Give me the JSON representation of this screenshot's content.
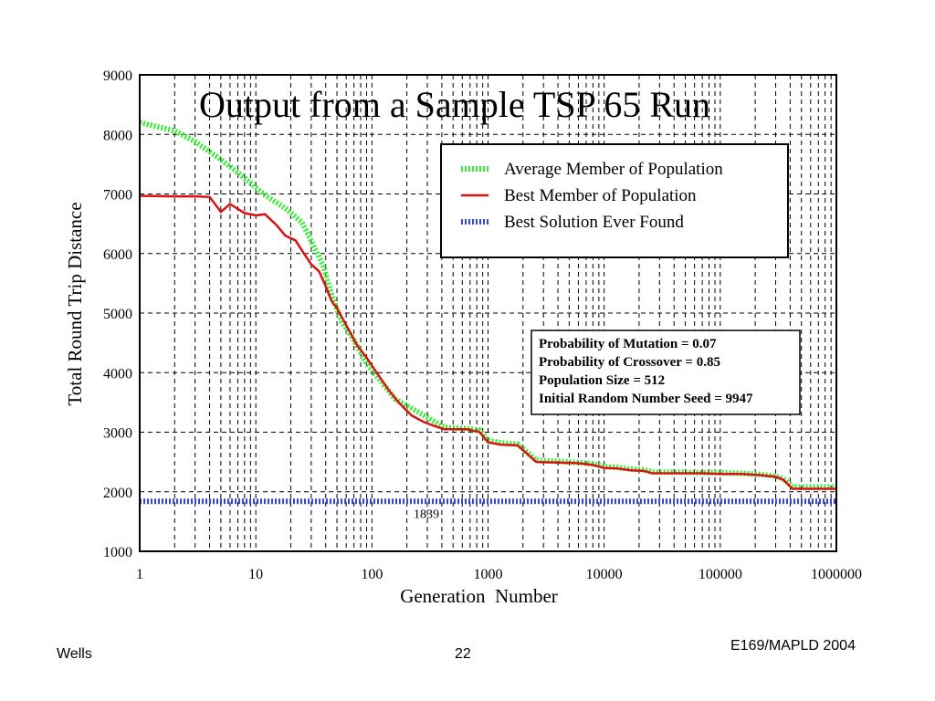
{
  "footer": {
    "author": "Wells",
    "page_number": "22",
    "course": "E169/MAPLD 2004"
  },
  "chart_data": {
    "type": "line",
    "title": "Output from a Sample TSP 65 Run",
    "xlabel": "Generation  Number",
    "ylabel": "Total Round Trip Distance",
    "x_scale": "log",
    "xlim": [
      1,
      1000000
    ],
    "ylim": [
      1000,
      9000
    ],
    "grid": true,
    "x_tick_labels": [
      "1",
      "10",
      "100",
      "1000",
      "10000",
      "100000",
      "1000000"
    ],
    "y_tick_labels": [
      "1000",
      "2000",
      "3000",
      "4000",
      "5000",
      "6000",
      "7000",
      "8000",
      "9000"
    ],
    "legend_position": "top-right",
    "legend": [
      "Average Member of Population",
      "Best Member of Population",
      "Best Solution Ever Found"
    ],
    "series": [
      {
        "name": "Average Member of Population",
        "color": "#33ee33",
        "style": "dotted-thick",
        "x": [
          1,
          2,
          3,
          5,
          8,
          12,
          18,
          25,
          32,
          38,
          45,
          55,
          70,
          90,
          120,
          160,
          220,
          300,
          420,
          650,
          850,
          1000,
          1300,
          1800,
          2600,
          4000,
          6000,
          8000,
          10000,
          13000,
          17000,
          22000,
          26000,
          40000,
          70000,
          100000,
          150000,
          220000,
          300000,
          350000,
          420000,
          500000,
          1000000
        ],
        "y": [
          8200,
          8060,
          7880,
          7580,
          7270,
          6980,
          6760,
          6520,
          6100,
          5800,
          5300,
          4850,
          4550,
          4150,
          3850,
          3550,
          3400,
          3250,
          3080,
          3060,
          3030,
          2860,
          2820,
          2800,
          2530,
          2510,
          2490,
          2470,
          2420,
          2410,
          2380,
          2370,
          2330,
          2330,
          2320,
          2320,
          2310,
          2290,
          2260,
          2220,
          2080,
          2080,
          2080
        ]
      },
      {
        "name": "Best Member of Population",
        "color": "#dd1111",
        "style": "solid",
        "x": [
          1,
          2,
          3,
          4,
          5,
          6,
          8,
          10,
          12,
          15,
          18,
          22,
          26,
          30,
          35,
          40,
          45,
          50,
          60,
          75,
          90,
          110,
          140,
          170,
          220,
          280,
          350,
          420,
          650,
          850,
          1000,
          1300,
          1800,
          2600,
          4000,
          6000,
          8000,
          10000,
          13000,
          17000,
          22000,
          26000,
          40000,
          70000,
          100000,
          150000,
          220000,
          300000,
          350000,
          420000,
          500000,
          1000000
        ],
        "y": [
          6970,
          6960,
          6960,
          6950,
          6700,
          6830,
          6680,
          6640,
          6660,
          6480,
          6300,
          6220,
          6000,
          5820,
          5700,
          5450,
          5200,
          5080,
          4800,
          4450,
          4250,
          4000,
          3700,
          3500,
          3280,
          3170,
          3100,
          3050,
          3050,
          3000,
          2830,
          2790,
          2780,
          2500,
          2490,
          2480,
          2450,
          2400,
          2390,
          2360,
          2350,
          2310,
          2310,
          2310,
          2300,
          2300,
          2280,
          2250,
          2200,
          2050,
          2050,
          2050
        ]
      },
      {
        "name": "Best Solution Ever Found",
        "color": "#3344ee",
        "style": "dotted-thick",
        "x": [
          1,
          1000000
        ],
        "y": [
          1839,
          1839
        ]
      }
    ],
    "annotations": {
      "best_value_label": "1839",
      "params": [
        "Probability of Mutation = 0.07",
        "Probability of Crossover = 0.85",
        "Population Size = 512",
        "Initial Random Number Seed = 9947"
      ]
    }
  }
}
